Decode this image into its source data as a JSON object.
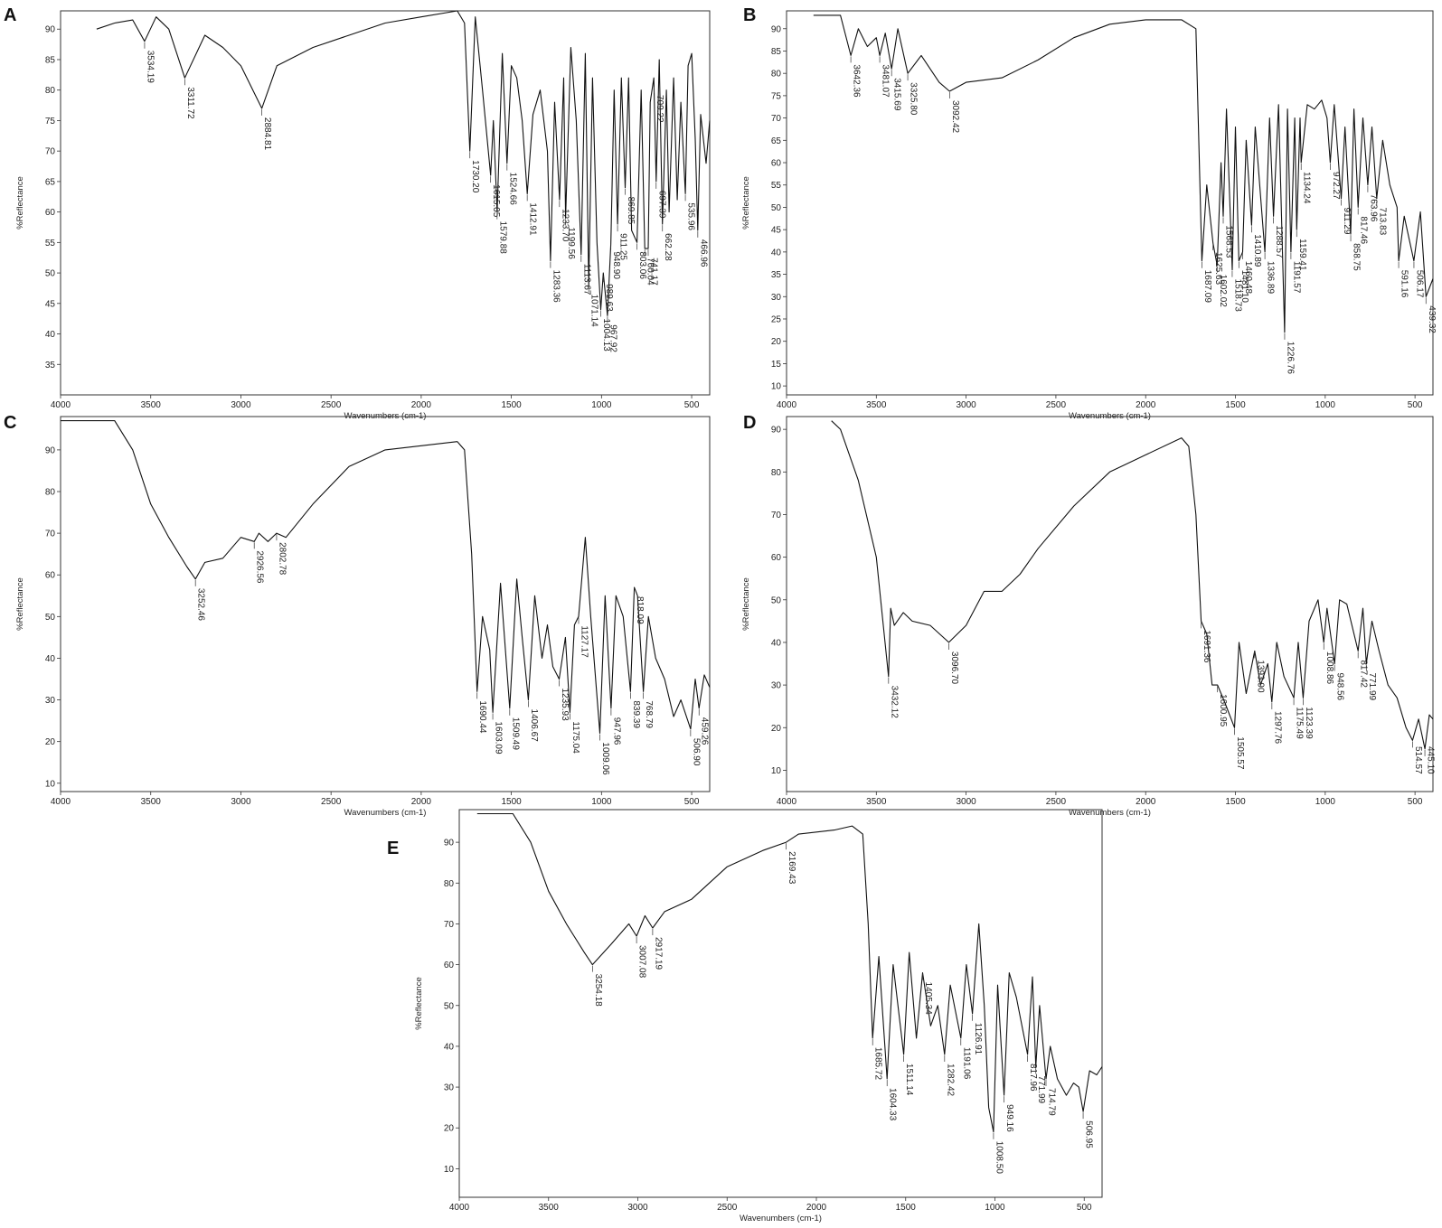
{
  "chart_data": [
    {
      "type": "line",
      "panel": "A",
      "xlabel": "Wavenumbers (cm-1)",
      "ylabel": "%Reflectance",
      "xlim": [
        4000,
        400
      ],
      "ylim": [
        30,
        93
      ],
      "x_ticks": [
        4000,
        3500,
        3000,
        2500,
        2000,
        1500,
        1000,
        500
      ],
      "y_ticks": [
        35,
        40,
        45,
        50,
        55,
        60,
        65,
        70,
        75,
        80,
        85,
        90
      ],
      "grid": false,
      "x": [
        3800,
        3700,
        3600,
        3534,
        3470,
        3400,
        3311,
        3200,
        3100,
        3000,
        2884,
        2800,
        2600,
        2400,
        2200,
        2000,
        1800,
        1760,
        1730,
        1700,
        1660,
        1615,
        1600,
        1579,
        1550,
        1524,
        1500,
        1470,
        1440,
        1412,
        1380,
        1340,
        1300,
        1283,
        1260,
        1233,
        1210,
        1199,
        1170,
        1140,
        1113,
        1090,
        1071,
        1050,
        1025,
        1004,
        990,
        967,
        948,
        930,
        911,
        890,
        869,
        850,
        833,
        803,
        780,
        760,
        741,
        730,
        710,
        697,
        680,
        662,
        640,
        625,
        600,
        580,
        560,
        535,
        520,
        500,
        480,
        466,
        450,
        420,
        400
      ],
      "y": [
        90,
        91,
        91.5,
        88,
        92,
        90,
        82,
        89,
        87,
        84,
        77,
        84,
        87,
        89,
        91,
        92,
        93,
        91,
        70,
        92,
        80,
        66,
        75,
        60,
        86,
        68,
        84,
        82,
        75,
        63,
        76,
        80,
        70,
        52,
        78,
        62,
        82,
        59,
        87,
        75,
        53,
        86,
        48,
        82,
        55,
        44,
        50,
        43,
        55,
        80,
        58,
        82,
        64,
        82,
        57,
        55,
        80,
        54,
        54,
        78,
        82,
        65,
        85,
        58,
        80,
        60,
        82,
        62,
        78,
        63,
        84,
        86,
        72,
        57,
        76,
        68,
        75
      ],
      "peak_labels": [
        {
          "x": 3534,
          "label": "3534.19"
        },
        {
          "x": 3311,
          "label": "3311.72"
        },
        {
          "x": 2884,
          "label": "2884.81"
        },
        {
          "x": 1730,
          "label": "1730.20"
        },
        {
          "x": 1615,
          "label": "1615.05"
        },
        {
          "x": 1579,
          "label": "1579.88"
        },
        {
          "x": 1524,
          "label": "1524.66"
        },
        {
          "x": 1412,
          "label": "1412.91"
        },
        {
          "x": 1283,
          "label": "1283.36"
        },
        {
          "x": 1233,
          "label": "1233.70"
        },
        {
          "x": 1199,
          "label": "1199.56"
        },
        {
          "x": 1113,
          "label": "1113.67"
        },
        {
          "x": 1071,
          "label": "1071.14"
        },
        {
          "x": 1004,
          "label": "1004.13"
        },
        {
          "x": 989,
          "label": "989.63"
        },
        {
          "x": 967,
          "label": "967.92"
        },
        {
          "x": 948,
          "label": "948.90"
        },
        {
          "x": 911,
          "label": "911.25"
        },
        {
          "x": 869,
          "label": "869.85"
        },
        {
          "x": 803,
          "label": "803.06"
        },
        {
          "x": 760,
          "label": "760.04"
        },
        {
          "x": 741,
          "label": "741.17"
        },
        {
          "x": 709,
          "label": "709.22"
        },
        {
          "x": 697,
          "label": "697.39"
        },
        {
          "x": 662,
          "label": "662.28"
        },
        {
          "x": 535,
          "label": "535.96"
        },
        {
          "x": 466,
          "label": "466.96"
        }
      ]
    },
    {
      "type": "line",
      "panel": "B",
      "xlabel": "Wavenumbers (cm-1)",
      "ylabel": "%Reflectance",
      "xlim": [
        4000,
        400
      ],
      "ylim": [
        8,
        94
      ],
      "x_ticks": [
        4000,
        3500,
        3000,
        2500,
        2000,
        1500,
        1000,
        500
      ],
      "y_ticks": [
        10,
        15,
        20,
        25,
        30,
        35,
        40,
        45,
        50,
        55,
        60,
        65,
        70,
        75,
        80,
        85,
        90
      ],
      "grid": false,
      "x": [
        3850,
        3700,
        3642,
        3600,
        3550,
        3500,
        3481,
        3450,
        3415,
        3380,
        3325,
        3250,
        3150,
        3092,
        3000,
        2800,
        2600,
        2400,
        2200,
        2000,
        1800,
        1720,
        1687,
        1660,
        1625,
        1602,
        1580,
        1568,
        1550,
        1518,
        1500,
        1481,
        1460,
        1440,
        1410,
        1390,
        1336,
        1310,
        1288,
        1260,
        1226,
        1210,
        1191,
        1170,
        1159,
        1140,
        1134,
        1100,
        1060,
        1020,
        990,
        972,
        950,
        911,
        890,
        858,
        840,
        817,
        790,
        763,
        740,
        713,
        680,
        640,
        600,
        591,
        560,
        506,
        470,
        439,
        400
      ],
      "y": [
        93,
        93,
        84,
        90,
        86,
        88,
        84,
        89,
        81,
        90,
        80,
        84,
        78,
        76,
        78,
        79,
        83,
        88,
        91,
        92,
        92,
        90,
        38,
        55,
        42,
        37,
        60,
        48,
        72,
        36,
        68,
        38,
        40,
        65,
        46,
        68,
        40,
        70,
        48,
        73,
        22,
        72,
        40,
        70,
        45,
        70,
        60,
        73,
        72,
        74,
        70,
        60,
        73,
        52,
        68,
        44,
        72,
        50,
        70,
        55,
        68,
        52,
        65,
        55,
        50,
        38,
        48,
        38,
        49,
        30,
        34
      ],
      "peak_labels": [
        {
          "x": 3642,
          "label": "3642.36"
        },
        {
          "x": 3481,
          "label": "3481.07"
        },
        {
          "x": 3415,
          "label": "3415.69"
        },
        {
          "x": 3325,
          "label": "3325.80"
        },
        {
          "x": 3092,
          "label": "3092.42"
        },
        {
          "x": 1687,
          "label": "1687.09"
        },
        {
          "x": 1625,
          "label": "1625.63"
        },
        {
          "x": 1602,
          "label": "1602.02"
        },
        {
          "x": 1568,
          "label": "1568.53"
        },
        {
          "x": 1518,
          "label": "1518.73"
        },
        {
          "x": 1481,
          "label": "1481.10"
        },
        {
          "x": 1460,
          "label": "1460.48"
        },
        {
          "x": 1410,
          "label": "1410.89"
        },
        {
          "x": 1336,
          "label": "1336.89"
        },
        {
          "x": 1288,
          "label": "1288.57"
        },
        {
          "x": 1226,
          "label": "1226.76"
        },
        {
          "x": 1191,
          "label": "1191.57"
        },
        {
          "x": 1159,
          "label": "1159.41"
        },
        {
          "x": 1134,
          "label": "1134.24"
        },
        {
          "x": 972,
          "label": "972.27"
        },
        {
          "x": 911,
          "label": "911.29"
        },
        {
          "x": 858,
          "label": "858.75"
        },
        {
          "x": 817,
          "label": "817.46"
        },
        {
          "x": 763,
          "label": "763.96"
        },
        {
          "x": 713,
          "label": "713.83"
        },
        {
          "x": 591,
          "label": "591.16"
        },
        {
          "x": 506,
          "label": "506.17"
        },
        {
          "x": 439,
          "label": "439.32"
        }
      ]
    },
    {
      "type": "line",
      "panel": "C",
      "xlabel": "Wavenumbers (cm-1)",
      "ylabel": "%Reflectance",
      "xlim": [
        4000,
        400
      ],
      "ylim": [
        8,
        98
      ],
      "x_ticks": [
        4000,
        3500,
        3000,
        2500,
        2000,
        1500,
        1000,
        500
      ],
      "y_ticks": [
        10,
        20,
        30,
        40,
        50,
        60,
        70,
        80,
        90
      ],
      "grid": false,
      "x": [
        4000,
        3900,
        3700,
        3600,
        3500,
        3400,
        3300,
        3252,
        3200,
        3100,
        3000,
        2926,
        2900,
        2850,
        2802,
        2750,
        2600,
        2400,
        2200,
        2000,
        1800,
        1760,
        1720,
        1690,
        1660,
        1620,
        1603,
        1560,
        1509,
        1470,
        1440,
        1406,
        1370,
        1330,
        1300,
        1270,
        1235,
        1200,
        1175,
        1150,
        1127,
        1090,
        1060,
        1009,
        980,
        947,
        920,
        880,
        839,
        818,
        800,
        768,
        740,
        700,
        650,
        600,
        560,
        506,
        480,
        459,
        430,
        400
      ],
      "y": [
        97,
        97,
        97,
        90,
        77,
        69,
        62,
        59,
        63,
        64,
        69,
        68,
        70,
        68,
        70,
        69,
        77,
        86,
        90,
        91,
        92,
        90,
        65,
        32,
        50,
        42,
        27,
        58,
        28,
        59,
        45,
        30,
        55,
        40,
        48,
        38,
        35,
        45,
        27,
        48,
        50,
        69,
        50,
        22,
        55,
        28,
        55,
        50,
        32,
        57,
        55,
        32,
        50,
        40,
        35,
        26,
        30,
        23,
        35,
        28,
        36,
        33
      ],
      "peak_labels": [
        {
          "x": 3252,
          "label": "3252.46"
        },
        {
          "x": 2926,
          "label": "2926.56"
        },
        {
          "x": 2802,
          "label": "2802.78"
        },
        {
          "x": 1690,
          "label": "1690.44"
        },
        {
          "x": 1603,
          "label": "1603.09"
        },
        {
          "x": 1509,
          "label": "1509.49"
        },
        {
          "x": 1406,
          "label": "1406.67"
        },
        {
          "x": 1235,
          "label": "1235.93"
        },
        {
          "x": 1175,
          "label": "1175.04"
        },
        {
          "x": 1127,
          "label": "1127.17"
        },
        {
          "x": 1009,
          "label": "1009.06"
        },
        {
          "x": 947,
          "label": "947.96"
        },
        {
          "x": 839,
          "label": "839.39"
        },
        {
          "x": 818,
          "label": "818.09"
        },
        {
          "x": 768,
          "label": "768.79"
        },
        {
          "x": 506,
          "label": "506.90"
        },
        {
          "x": 459,
          "label": "459.26"
        }
      ]
    },
    {
      "type": "line",
      "panel": "D",
      "xlabel": "Wavenumbers (cm-1)",
      "ylabel": "%Reflectance",
      "xlim": [
        4000,
        400
      ],
      "ylim": [
        5,
        93
      ],
      "x_ticks": [
        4000,
        3500,
        3000,
        2500,
        2000,
        1500,
        1000,
        500
      ],
      "y_ticks": [
        10,
        20,
        30,
        40,
        50,
        60,
        70,
        80,
        90
      ],
      "grid": false,
      "x": [
        3750,
        3700,
        3600,
        3500,
        3432,
        3420,
        3400,
        3350,
        3300,
        3200,
        3096,
        3000,
        2900,
        2800,
        2700,
        2600,
        2400,
        2200,
        2000,
        1800,
        1760,
        1720,
        1691,
        1660,
        1630,
        1600,
        1560,
        1505,
        1480,
        1440,
        1393,
        1360,
        1320,
        1297,
        1270,
        1230,
        1175,
        1150,
        1123,
        1090,
        1040,
        1008,
        990,
        948,
        920,
        880,
        817,
        790,
        771,
        740,
        700,
        650,
        600,
        550,
        514,
        480,
        445,
        420,
        400
      ],
      "y": [
        92,
        90,
        78,
        60,
        32,
        48,
        44,
        47,
        45,
        44,
        40,
        44,
        52,
        52,
        56,
        62,
        72,
        80,
        84,
        88,
        86,
        70,
        45,
        42,
        30,
        30,
        26,
        20,
        40,
        28,
        38,
        30,
        35,
        26,
        40,
        32,
        27,
        40,
        27,
        45,
        50,
        40,
        48,
        35,
        50,
        49,
        38,
        48,
        35,
        45,
        38,
        30,
        27,
        20,
        17,
        22,
        15,
        23,
        22
      ],
      "peak_labels": [
        {
          "x": 3432,
          "label": "3432.12"
        },
        {
          "x": 3096,
          "label": "3096.70"
        },
        {
          "x": 1691,
          "label": "1691.36"
        },
        {
          "x": 1600,
          "label": "1600.95"
        },
        {
          "x": 1505,
          "label": "1505.57"
        },
        {
          "x": 1393,
          "label": "1393.90"
        },
        {
          "x": 1297,
          "label": "1297.76"
        },
        {
          "x": 1175,
          "label": "1175.49"
        },
        {
          "x": 1123,
          "label": "1123.39"
        },
        {
          "x": 1008,
          "label": "1008.86"
        },
        {
          "x": 948,
          "label": "948.56"
        },
        {
          "x": 817,
          "label": "817.42"
        },
        {
          "x": 771,
          "label": "771.99"
        },
        {
          "x": 514,
          "label": "514.57"
        },
        {
          "x": 445,
          "label": "445.10"
        }
      ]
    },
    {
      "type": "line",
      "panel": "E",
      "xlabel": "Wavenumbers (cm-1)",
      "ylabel": "%Reflectance",
      "xlim": [
        4000,
        400
      ],
      "ylim": [
        3,
        98
      ],
      "x_ticks": [
        4000,
        3500,
        3000,
        2500,
        2000,
        1500,
        1000,
        500
      ],
      "y_ticks": [
        10,
        20,
        30,
        40,
        50,
        60,
        70,
        80,
        90
      ],
      "grid": false,
      "x": [
        3900,
        3700,
        3600,
        3500,
        3400,
        3300,
        3254,
        3150,
        3050,
        3007,
        2960,
        2917,
        2850,
        2700,
        2500,
        2300,
        2169,
        2100,
        1900,
        1800,
        1740,
        1710,
        1685,
        1650,
        1604,
        1570,
        1511,
        1480,
        1440,
        1405,
        1360,
        1320,
        1282,
        1250,
        1191,
        1160,
        1126,
        1090,
        1060,
        1035,
        1008,
        985,
        949,
        920,
        880,
        817,
        790,
        771,
        750,
        714,
        690,
        650,
        600,
        560,
        530,
        506,
        470,
        430,
        400
      ],
      "y": [
        97,
        97,
        90,
        78,
        70,
        63,
        60,
        65,
        70,
        67,
        72,
        69,
        73,
        76,
        84,
        88,
        90,
        92,
        93,
        94,
        92,
        70,
        42,
        62,
        32,
        60,
        38,
        63,
        42,
        58,
        45,
        50,
        38,
        55,
        42,
        60,
        48,
        70,
        50,
        25,
        19,
        55,
        28,
        58,
        52,
        38,
        57,
        35,
        50,
        32,
        40,
        32,
        28,
        31,
        30,
        24,
        34,
        33,
        35
      ],
      "peak_labels": [
        {
          "x": 3254,
          "label": "3254.18"
        },
        {
          "x": 3007,
          "label": "3007.08"
        },
        {
          "x": 2917,
          "label": "2917.19"
        },
        {
          "x": 2169,
          "label": "2169.43"
        },
        {
          "x": 1685,
          "label": "1685.72"
        },
        {
          "x": 1604,
          "label": "1604.33"
        },
        {
          "x": 1511,
          "label": "1511.14"
        },
        {
          "x": 1405,
          "label": "1405.34"
        },
        {
          "x": 1282,
          "label": "1282.42"
        },
        {
          "x": 1191,
          "label": "1191.06"
        },
        {
          "x": 1126,
          "label": "1126.91"
        },
        {
          "x": 1008,
          "label": "1008.50"
        },
        {
          "x": 949,
          "label": "949.16"
        },
        {
          "x": 817,
          "label": "817.96"
        },
        {
          "x": 771,
          "label": "771.99"
        },
        {
          "x": 714,
          "label": "714.79"
        },
        {
          "x": 506,
          "label": "506.95"
        }
      ]
    }
  ]
}
